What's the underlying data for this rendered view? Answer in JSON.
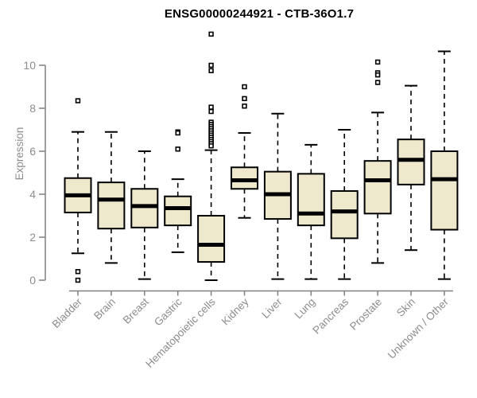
{
  "title": "ENSG00000244921 - CTB-36O1.7",
  "colors": {
    "background": "#ffffff",
    "box_fill": "#EEE8CD",
    "box_border": "#000000",
    "median": "#000000",
    "whisker": "#000000",
    "outlier": "#000000",
    "axis_line": "#808080",
    "axis_text": "#8C8C8C",
    "title_text": "#000000"
  },
  "chart_data": {
    "type": "boxplot",
    "title": "ENSG00000244921 - CTB-36O1.7",
    "xlabel": "",
    "ylabel": "Expression",
    "ylim": [
      0,
      10
    ],
    "yticks": [
      0,
      2,
      4,
      6,
      8,
      10
    ],
    "grid": false,
    "legend": "none",
    "x_tick_rotation_deg": 45,
    "categories": [
      "Bladder",
      "Brain",
      "Breast",
      "Gastric",
      "Hematopoietic cells",
      "Kidney",
      "Liver",
      "Lung",
      "Pancreas",
      "Prostate",
      "Skin",
      "Unknown / Other"
    ],
    "series": [
      {
        "category": "Bladder",
        "whisker_low": 1.25,
        "q1": 3.15,
        "median": 3.95,
        "q3": 4.75,
        "whisker_high": 6.9,
        "outliers": [
          8.35,
          0.4,
          0.0
        ]
      },
      {
        "category": "Brain",
        "whisker_low": 0.8,
        "q1": 2.4,
        "median": 3.75,
        "q3": 4.55,
        "whisker_high": 6.9,
        "outliers": []
      },
      {
        "category": "Breast",
        "whisker_low": 0.05,
        "q1": 2.45,
        "median": 3.45,
        "q3": 4.25,
        "whisker_high": 6.0,
        "outliers": []
      },
      {
        "category": "Gastric",
        "whisker_low": 1.3,
        "q1": 2.55,
        "median": 3.35,
        "q3": 3.9,
        "whisker_high": 4.7,
        "outliers": [
          6.9,
          6.85,
          6.1
        ]
      },
      {
        "category": "Hematopoietic cells",
        "whisker_low": 0.0,
        "q1": 0.85,
        "median": 1.65,
        "q3": 3.0,
        "whisker_high": 6.05,
        "outliers": [
          11.45,
          10.0,
          9.75,
          8.05,
          7.85,
          7.35,
          7.25,
          7.15,
          7.05,
          6.95,
          6.85,
          6.75,
          6.65,
          6.55,
          6.45,
          6.35,
          6.25
        ]
      },
      {
        "category": "Kidney",
        "whisker_low": 2.9,
        "q1": 4.25,
        "median": 4.65,
        "q3": 5.25,
        "whisker_high": 6.85,
        "outliers": [
          9.0,
          8.45,
          8.1
        ]
      },
      {
        "category": "Liver",
        "whisker_low": 0.05,
        "q1": 2.85,
        "median": 4.0,
        "q3": 5.05,
        "whisker_high": 7.75,
        "outliers": []
      },
      {
        "category": "Lung",
        "whisker_low": 0.05,
        "q1": 2.55,
        "median": 3.1,
        "q3": 4.95,
        "whisker_high": 6.3,
        "outliers": []
      },
      {
        "category": "Pancreas",
        "whisker_low": 0.05,
        "q1": 1.95,
        "median": 3.2,
        "q3": 4.15,
        "whisker_high": 7.0,
        "outliers": []
      },
      {
        "category": "Prostate",
        "whisker_low": 0.8,
        "q1": 3.1,
        "median": 4.65,
        "q3": 5.55,
        "whisker_high": 7.8,
        "outliers": [
          10.15,
          9.65,
          9.55,
          9.2
        ]
      },
      {
        "category": "Skin",
        "whisker_low": 1.4,
        "q1": 4.45,
        "median": 5.6,
        "q3": 6.55,
        "whisker_high": 9.05,
        "outliers": []
      },
      {
        "category": "Unknown / Other",
        "whisker_low": 0.05,
        "q1": 2.35,
        "median": 4.7,
        "q3": 6.0,
        "whisker_high": 10.65,
        "outliers": []
      }
    ]
  }
}
